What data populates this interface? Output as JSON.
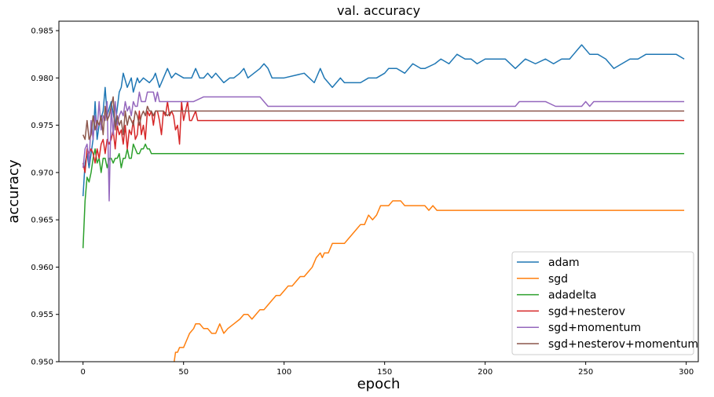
{
  "chart_data": {
    "type": "line",
    "title": "val. accuracy",
    "xlabel": "epoch",
    "ylabel": "accuracy",
    "xlim": [
      -12,
      306
    ],
    "ylim": [
      0.95,
      0.986
    ],
    "xticks": [
      0,
      50,
      100,
      150,
      200,
      250,
      300
    ],
    "xtick_labels": [
      "0",
      "50",
      "100",
      "150",
      "200",
      "250",
      "300"
    ],
    "yticks": [
      0.95,
      0.955,
      0.96,
      0.965,
      0.97,
      0.975,
      0.98,
      0.985
    ],
    "ytick_labels": [
      "0.950",
      "0.955",
      "0.960",
      "0.965",
      "0.970",
      "0.975",
      "0.980",
      "0.985"
    ],
    "grid": false,
    "legend_position": "lower-right",
    "series": [
      {
        "name": "adam",
        "color": "#1f77b4",
        "x": [
          0,
          1,
          2,
          3,
          4,
          5,
          6,
          7,
          8,
          10,
          11,
          12,
          14,
          16,
          18,
          19,
          20,
          22,
          24,
          25,
          27,
          28,
          30,
          33,
          35,
          36,
          38,
          40,
          42,
          44,
          46,
          50,
          54,
          56,
          58,
          60,
          62,
          64,
          66,
          68,
          70,
          73,
          75,
          78,
          80,
          82,
          85,
          88,
          90,
          92,
          94,
          100,
          110,
          115,
          118,
          120,
          122,
          124,
          126,
          128,
          130,
          134,
          138,
          142,
          146,
          150,
          152,
          156,
          160,
          164,
          168,
          170,
          175,
          178,
          182,
          186,
          190,
          193,
          196,
          200,
          205,
          210,
          215,
          220,
          225,
          230,
          234,
          238,
          242,
          244,
          246,
          248,
          252,
          256,
          260,
          264,
          268,
          272,
          276,
          280,
          285,
          290,
          295,
          299
        ],
        "y": [
          0.9675,
          0.971,
          0.972,
          0.9705,
          0.972,
          0.9735,
          0.9775,
          0.9735,
          0.975,
          0.9765,
          0.979,
          0.976,
          0.9775,
          0.975,
          0.9785,
          0.979,
          0.9805,
          0.979,
          0.98,
          0.9785,
          0.98,
          0.9795,
          0.98,
          0.9795,
          0.98,
          0.9805,
          0.979,
          0.98,
          0.981,
          0.98,
          0.9805,
          0.98,
          0.98,
          0.981,
          0.98,
          0.98,
          0.9805,
          0.98,
          0.9805,
          0.98,
          0.9795,
          0.98,
          0.98,
          0.9805,
          0.981,
          0.98,
          0.9805,
          0.981,
          0.9815,
          0.981,
          0.98,
          0.98,
          0.9805,
          0.9795,
          0.981,
          0.98,
          0.9795,
          0.979,
          0.9795,
          0.98,
          0.9795,
          0.9795,
          0.9795,
          0.98,
          0.98,
          0.9805,
          0.981,
          0.981,
          0.9805,
          0.9815,
          0.981,
          0.981,
          0.9815,
          0.982,
          0.9815,
          0.9825,
          0.982,
          0.982,
          0.9815,
          0.982,
          0.982,
          0.982,
          0.981,
          0.982,
          0.9815,
          0.982,
          0.9815,
          0.982,
          0.982,
          0.9825,
          0.983,
          0.9835,
          0.9825,
          0.9825,
          0.982,
          0.981,
          0.9815,
          0.982,
          0.982,
          0.9825,
          0.9825,
          0.9825,
          0.9825,
          0.982
        ]
      },
      {
        "name": "sgd",
        "color": "#ff7f0e",
        "x": [
          45,
          46,
          47,
          48,
          50,
          52,
          53,
          55,
          56,
          58,
          60,
          62,
          64,
          66,
          68,
          70,
          72,
          75,
          78,
          80,
          82,
          84,
          86,
          88,
          90,
          92,
          94,
          96,
          98,
          100,
          102,
          104,
          106,
          108,
          110,
          112,
          114,
          116,
          118,
          119,
          120,
          122,
          124,
          126,
          128,
          130,
          132,
          134,
          136,
          138,
          140,
          142,
          144,
          146,
          148,
          150,
          152,
          154,
          156,
          158,
          160,
          165,
          170,
          172,
          174,
          176,
          178,
          180,
          200,
          250,
          299
        ],
        "y": [
          0.9495,
          0.951,
          0.951,
          0.9515,
          0.9515,
          0.9525,
          0.953,
          0.9535,
          0.954,
          0.954,
          0.9535,
          0.9535,
          0.953,
          0.953,
          0.954,
          0.953,
          0.9535,
          0.954,
          0.9545,
          0.955,
          0.955,
          0.9545,
          0.955,
          0.9555,
          0.9555,
          0.956,
          0.9565,
          0.957,
          0.957,
          0.9575,
          0.958,
          0.958,
          0.9585,
          0.959,
          0.959,
          0.9595,
          0.96,
          0.961,
          0.9615,
          0.961,
          0.9615,
          0.9615,
          0.9625,
          0.9625,
          0.9625,
          0.9625,
          0.963,
          0.9635,
          0.964,
          0.9645,
          0.9645,
          0.9655,
          0.965,
          0.9655,
          0.9665,
          0.9665,
          0.9665,
          0.967,
          0.967,
          0.967,
          0.9665,
          0.9665,
          0.9665,
          0.966,
          0.9665,
          0.966,
          0.966,
          0.966,
          0.966,
          0.966,
          0.966
        ]
      },
      {
        "name": "adadelta",
        "color": "#2ca02c",
        "x": [
          0,
          1,
          2,
          3,
          4,
          5,
          6,
          7,
          8,
          9,
          10,
          11,
          12,
          13,
          14,
          15,
          16,
          17,
          18,
          19,
          20,
          21,
          22,
          23,
          24,
          25,
          26,
          27,
          28,
          29,
          30,
          31,
          32,
          33,
          34,
          35,
          36,
          40,
          50,
          100,
          150,
          200,
          250,
          299
        ],
        "y": [
          0.962,
          0.967,
          0.9695,
          0.969,
          0.97,
          0.9715,
          0.9725,
          0.971,
          0.9715,
          0.97,
          0.9715,
          0.9715,
          0.9705,
          0.9715,
          0.9715,
          0.971,
          0.9715,
          0.9715,
          0.972,
          0.9705,
          0.9715,
          0.9715,
          0.9725,
          0.9715,
          0.9715,
          0.973,
          0.9725,
          0.972,
          0.972,
          0.9725,
          0.9725,
          0.973,
          0.9725,
          0.9725,
          0.972,
          0.972,
          0.972,
          0.972,
          0.972,
          0.972,
          0.972,
          0.972,
          0.972,
          0.972
        ]
      },
      {
        "name": "sgd+nesterov",
        "color": "#d62728",
        "x": [
          0,
          1,
          2,
          3,
          4,
          5,
          6,
          7,
          8,
          9,
          10,
          11,
          12,
          13,
          14,
          15,
          16,
          17,
          18,
          19,
          20,
          21,
          22,
          23,
          24,
          25,
          26,
          27,
          28,
          29,
          30,
          31,
          32,
          33,
          34,
          35,
          36,
          37,
          38,
          39,
          40,
          41,
          42,
          43,
          44,
          45,
          46,
          47,
          48,
          49,
          50,
          51,
          52,
          53,
          54,
          55,
          56,
          57,
          58,
          60,
          100,
          150,
          200,
          250,
          299
        ],
        "y": [
          0.971,
          0.97,
          0.9725,
          0.972,
          0.9725,
          0.972,
          0.971,
          0.9725,
          0.9715,
          0.973,
          0.9735,
          0.972,
          0.9735,
          0.973,
          0.9735,
          0.9745,
          0.9725,
          0.975,
          0.974,
          0.9745,
          0.973,
          0.975,
          0.9725,
          0.9745,
          0.974,
          0.9755,
          0.9735,
          0.974,
          0.9765,
          0.974,
          0.975,
          0.9735,
          0.9765,
          0.976,
          0.9765,
          0.975,
          0.9765,
          0.9765,
          0.9755,
          0.974,
          0.9765,
          0.976,
          0.9775,
          0.976,
          0.9765,
          0.976,
          0.9745,
          0.975,
          0.973,
          0.9775,
          0.9755,
          0.9765,
          0.9775,
          0.9755,
          0.9755,
          0.976,
          0.9765,
          0.9755,
          0.9755,
          0.9755,
          0.9755,
          0.9755,
          0.9755,
          0.9755,
          0.9755
        ]
      },
      {
        "name": "sgd+momentum",
        "color": "#9467bd",
        "x": [
          0,
          1,
          2,
          3,
          4,
          5,
          6,
          7,
          8,
          9,
          10,
          11,
          12,
          13,
          14,
          15,
          16,
          17,
          18,
          19,
          20,
          21,
          22,
          23,
          24,
          25,
          26,
          27,
          28,
          29,
          30,
          31,
          32,
          33,
          34,
          35,
          36,
          37,
          38,
          40,
          50,
          55,
          60,
          88,
          92,
          95,
          100,
          150,
          200,
          215,
          217,
          220,
          230,
          235,
          240,
          248,
          250,
          252,
          254,
          256,
          260,
          299
        ],
        "y": [
          0.9705,
          0.9725,
          0.973,
          0.971,
          0.9755,
          0.9735,
          0.976,
          0.9745,
          0.9775,
          0.9745,
          0.976,
          0.9755,
          0.9775,
          0.967,
          0.977,
          0.974,
          0.9775,
          0.975,
          0.976,
          0.9765,
          0.976,
          0.9775,
          0.9765,
          0.977,
          0.976,
          0.9775,
          0.977,
          0.977,
          0.9785,
          0.9775,
          0.9775,
          0.9775,
          0.9785,
          0.9785,
          0.9785,
          0.9785,
          0.9775,
          0.9785,
          0.9775,
          0.9775,
          0.9775,
          0.9775,
          0.978,
          0.978,
          0.977,
          0.977,
          0.977,
          0.977,
          0.977,
          0.977,
          0.9775,
          0.9775,
          0.9775,
          0.977,
          0.977,
          0.977,
          0.9775,
          0.977,
          0.9775,
          0.9775,
          0.9775,
          0.9775
        ]
      },
      {
        "name": "sgd+nesterov+momentum",
        "color": "#8c564b",
        "x": [
          0,
          1,
          2,
          3,
          4,
          5,
          6,
          7,
          8,
          9,
          10,
          11,
          12,
          13,
          14,
          15,
          16,
          17,
          18,
          19,
          20,
          21,
          22,
          23,
          24,
          25,
          26,
          27,
          28,
          29,
          30,
          31,
          32,
          33,
          34,
          35,
          36,
          38,
          40,
          42,
          44,
          46,
          48,
          50,
          100,
          150,
          200,
          250,
          299
        ],
        "y": [
          0.974,
          0.9735,
          0.9755,
          0.9735,
          0.974,
          0.976,
          0.9745,
          0.9755,
          0.975,
          0.976,
          0.974,
          0.977,
          0.9755,
          0.976,
          0.977,
          0.978,
          0.9745,
          0.976,
          0.975,
          0.9755,
          0.974,
          0.9765,
          0.975,
          0.976,
          0.9755,
          0.975,
          0.9765,
          0.976,
          0.975,
          0.976,
          0.9765,
          0.976,
          0.977,
          0.9765,
          0.9765,
          0.976,
          0.9765,
          0.9765,
          0.9765,
          0.976,
          0.9765,
          0.9765,
          0.9765,
          0.9765,
          0.9765,
          0.9765,
          0.9765,
          0.9765,
          0.9765
        ]
      }
    ]
  }
}
